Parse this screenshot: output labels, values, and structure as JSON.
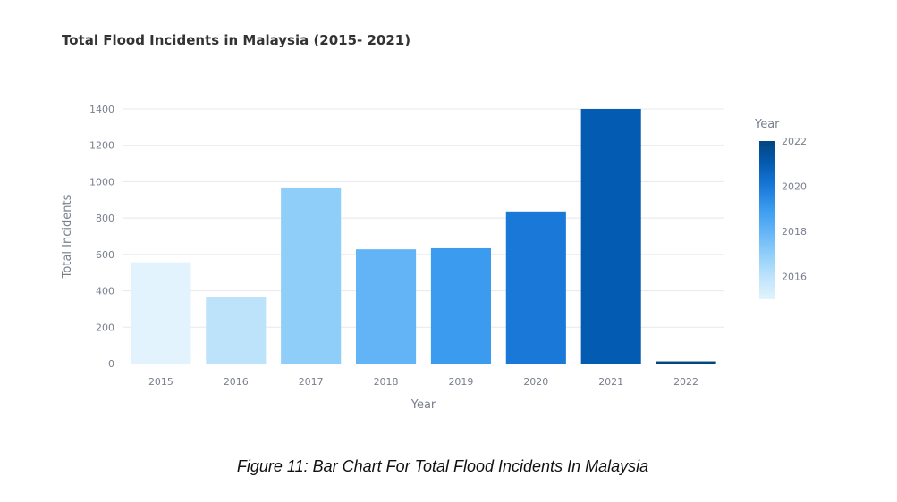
{
  "chart_data": {
    "type": "bar",
    "title": "Total Flood Incidents in Malaysia (2015- 2021)",
    "xlabel": "Year",
    "ylabel": "Total Incidents",
    "categories": [
      "2015",
      "2016",
      "2017",
      "2018",
      "2019",
      "2020",
      "2021",
      "2022"
    ],
    "values": [
      557,
      368,
      968,
      628,
      634,
      836,
      1400,
      12
    ],
    "colors": [
      "#e3f3fd",
      "#bde3fb",
      "#90cefa",
      "#63b4f7",
      "#3a9bef",
      "#1a78d9",
      "#045bb2",
      "#03457f"
    ],
    "ylim": [
      0,
      1400
    ],
    "yticks": [
      "0",
      "200",
      "400",
      "600",
      "800",
      "1000",
      "1200",
      "1400"
    ],
    "grid": true,
    "legend": {
      "title": "Year",
      "placement": "right",
      "type": "colorbar",
      "range": [
        2015,
        2022
      ],
      "ticks": [
        "2016",
        "2018",
        "2020",
        "2022"
      ],
      "colors": [
        "#e3f3fd",
        "#bde3fb",
        "#90cefa",
        "#63b4f7",
        "#3a9bef",
        "#1a78d9",
        "#045bb2",
        "#03457f"
      ]
    }
  },
  "caption": "Figure 11: Bar Chart For Total Flood Incidents In Malaysia"
}
